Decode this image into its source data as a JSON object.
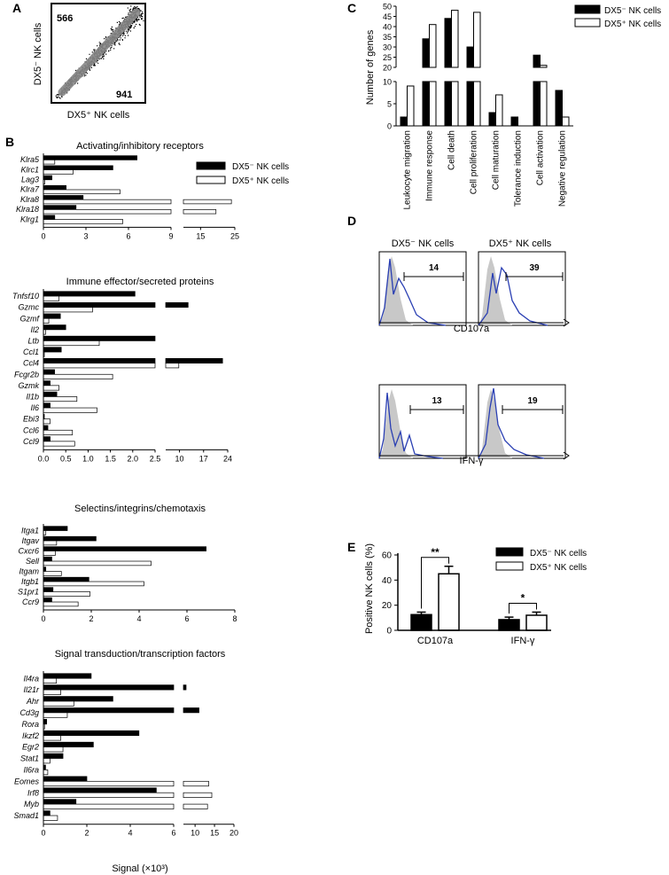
{
  "panel_labels": {
    "A": "A",
    "B": "B",
    "C": "C",
    "D": "D",
    "E": "E"
  },
  "colors": {
    "dx5_neg": "#000000",
    "dx5_pos": "#ffffff",
    "isotype": "#c8c8c8",
    "histogram_line": "#2a3fb3"
  },
  "legend": {
    "dx5_neg": "DX5⁻ NK cells",
    "dx5_pos": "DX5⁺ NK cells"
  },
  "panel_a": {
    "ylabel": "DX5⁻ NK cells",
    "xlabel": "DX5⁺ NK cells",
    "count_upper_left": "566",
    "count_lower_right": "941"
  },
  "panel_b": {
    "xlabel": "Signal (×10³)",
    "groups": [
      {
        "title": "Activating/inhibitory receptors",
        "ticks1": [
          "0",
          "3",
          "6",
          "9"
        ],
        "ticks2": [
          "15",
          "25"
        ],
        "genes": [
          "Klra5",
          "Klrc1",
          "Lag3",
          "Klra7",
          "Klra8",
          "Klra18",
          "Klrg1"
        ],
        "dx5_neg": [
          6.6,
          4.9,
          0.6,
          1.6,
          2.8,
          2.3,
          0.8
        ],
        "dx5_pos": [
          0.8,
          2.1,
          0.1,
          5.4,
          24.0,
          19.5,
          5.6
        ]
      },
      {
        "title": "Immune effector/secreted proteins",
        "ticks1": [
          "0.0",
          "0.5",
          "1.0",
          "1.5",
          "2.0",
          "2.5"
        ],
        "ticks2": [
          "10",
          "17",
          "24"
        ],
        "genes": [
          "Tnfsf10",
          "Gzmc",
          "Gzmf",
          "Il2",
          "Ltb",
          "Ccl1",
          "Ccl4",
          "Fcgr2b",
          "Gzmk",
          "Il1b",
          "Il6",
          "Ebi3",
          "Ccl6",
          "Ccl9"
        ],
        "dx5_neg": [
          2.05,
          12.5,
          0.38,
          0.5,
          6.0,
          0.4,
          22.5,
          0.25,
          0.15,
          0.3,
          0.15,
          0.02,
          0.1,
          0.15
        ],
        "dx5_pos": [
          0.35,
          1.1,
          0.12,
          0.05,
          1.25,
          0.02,
          9.8,
          1.55,
          0.35,
          0.75,
          1.2,
          0.15,
          0.65,
          0.7
        ]
      },
      {
        "title": "Selectins/integrins/chemotaxis",
        "ticks1": [
          "0",
          "2",
          "4",
          "6",
          "8"
        ],
        "ticks2": [],
        "genes": [
          "Itga1",
          "Itgav",
          "Cxcr6",
          "Sell",
          "Itgam",
          "Itgb1",
          "S1pr1",
          "Ccr9"
        ],
        "dx5_neg": [
          1.0,
          2.2,
          6.8,
          0.35,
          0.1,
          1.9,
          0.4,
          0.35
        ],
        "dx5_pos": [
          0.1,
          0.55,
          0.5,
          4.5,
          0.75,
          4.2,
          1.95,
          1.45
        ]
      },
      {
        "title": "Signal transduction/transcription factors",
        "ticks1": [
          "0",
          "2",
          "4",
          "6"
        ],
        "ticks2": [
          "10",
          "15",
          "20"
        ],
        "genes": [
          "Il4ra",
          "Il21r",
          "Ahr",
          "Cd3g",
          "Rora",
          "Ikzf2",
          "Egr2",
          "Stat1",
          "Il6ra",
          "Eomes",
          "Irf8",
          "Myb",
          "Smad1"
        ],
        "dx5_neg": [
          2.2,
          7.5,
          3.2,
          11.0,
          0.15,
          4.4,
          2.3,
          0.9,
          0.1,
          2.0,
          5.2,
          1.5,
          0.3
        ],
        "dx5_pos": [
          0.6,
          0.8,
          1.4,
          1.1,
          0.05,
          0.8,
          0.9,
          0.3,
          0.2,
          13.5,
          14.3,
          13.2,
          0.65
        ]
      }
    ]
  },
  "chart_data": [
    {
      "type": "bar",
      "ylabel": "Number of genes",
      "yticks_top": [
        "20",
        "25",
        "30",
        "35",
        "40",
        "45",
        "50"
      ],
      "yticks_bottom": [
        "0",
        "5",
        "10"
      ],
      "categories": [
        "Leukocyte migration",
        "Immune response",
        "Cell death",
        "Cell proliferation",
        "Cell maturation",
        "Tolerance induction",
        "Cell activation",
        "Negative regulation"
      ],
      "series": [
        {
          "name": "DX5⁻ NK cells",
          "values": [
            2,
            34,
            44,
            30,
            3,
            2,
            26,
            8
          ]
        },
        {
          "name": "DX5⁺ NK cells",
          "values": [
            9,
            41,
            48,
            47,
            7,
            0,
            21,
            2
          ]
        }
      ]
    },
    {
      "type": "bar",
      "ylabel": "Positive NK cells (%)",
      "ylim": [
        0,
        60
      ],
      "yticks": [
        "0",
        "20",
        "40",
        "60"
      ],
      "categories": [
        "CD107a",
        "IFN-γ"
      ],
      "series": [
        {
          "name": "DX5⁻ NK cells",
          "values": [
            12.5,
            8.5
          ],
          "errors": [
            2,
            2
          ]
        },
        {
          "name": "DX5⁺ NK cells",
          "values": [
            45,
            12
          ],
          "errors": [
            6,
            2.5
          ]
        }
      ],
      "significance": [
        "**",
        "*"
      ]
    }
  ],
  "panel_d": {
    "col_titles": [
      "DX5⁻ NK cells",
      "DX5⁺ NK cells"
    ],
    "row_labels": [
      "CD107a",
      "IFN-γ"
    ],
    "percentages": [
      "14",
      "39",
      "13",
      "19"
    ]
  }
}
